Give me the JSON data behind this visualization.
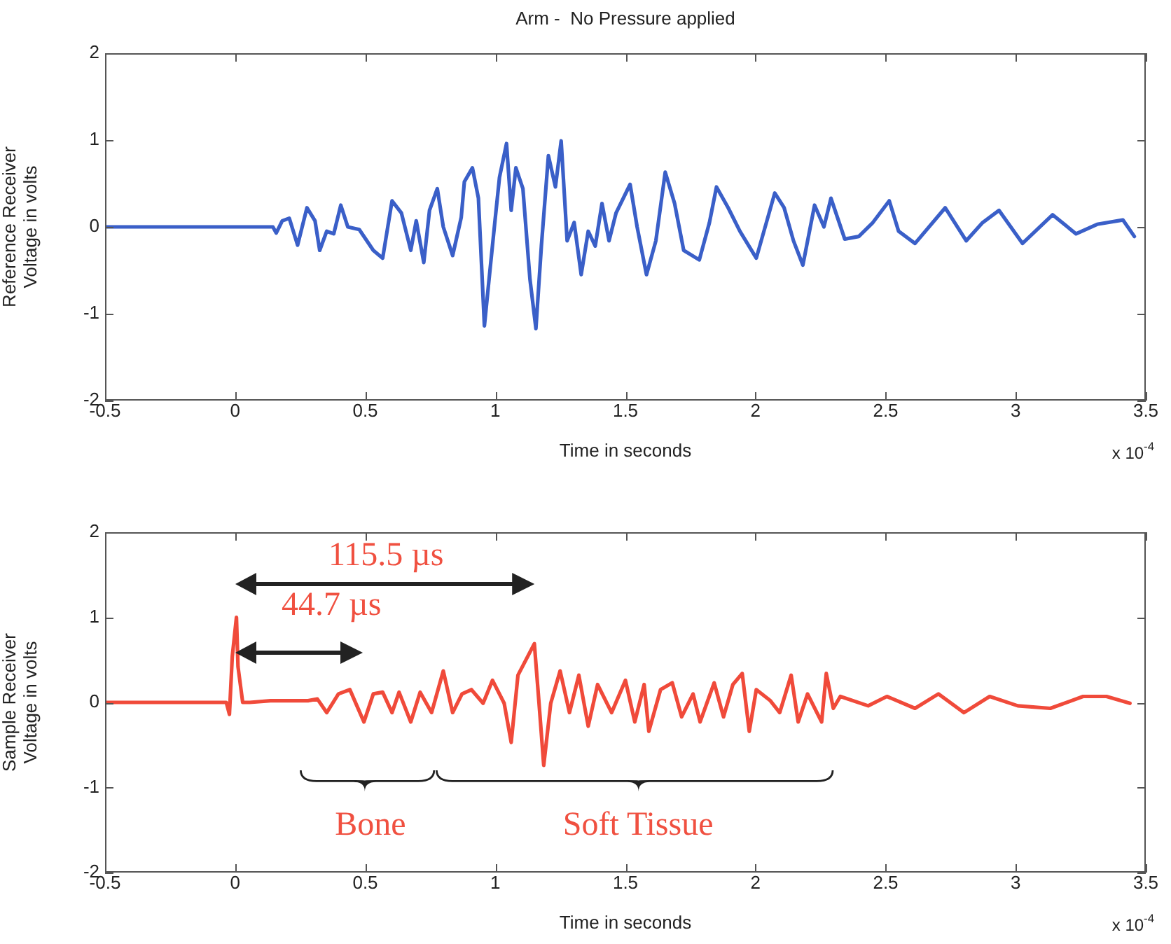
{
  "chart_data": [
    {
      "type": "line",
      "title": "Arm -  No Pressure applied",
      "xlabel": "Time in seconds",
      "ylabel": "Reference Receiver\nVoltage in volts",
      "x": [
        -0.5,
        0.145,
        0.158,
        0.181,
        0.208,
        0.24,
        0.276,
        0.307,
        0.325,
        0.352,
        0.379,
        0.406,
        0.433,
        0.477,
        0.531,
        0.567,
        0.603,
        0.639,
        0.675,
        0.696,
        0.725,
        0.747,
        0.777,
        0.8,
        0.836,
        0.869,
        0.881,
        0.912,
        0.935,
        0.958,
        0.976,
        0.998,
        1.016,
        1.043,
        1.061,
        1.079,
        1.106,
        1.133,
        1.156,
        1.177,
        1.204,
        1.231,
        1.253,
        1.276,
        1.303,
        1.33,
        1.357,
        1.384,
        1.41,
        1.437,
        1.464,
        1.518,
        1.545,
        1.581,
        1.617,
        1.653,
        1.689,
        1.724,
        1.784,
        1.823,
        1.85,
        1.895,
        1.94,
        2.003,
        2.074,
        2.11,
        2.146,
        2.182,
        2.227,
        2.263,
        2.29,
        2.343,
        2.397,
        2.451,
        2.514,
        2.55,
        2.613,
        2.729,
        2.81,
        2.873,
        2.936,
        3.026,
        3.142,
        3.232,
        3.313,
        3.412,
        3.456
      ],
      "series": [
        {
          "color": "#3a5fc8",
          "values": [
            0,
            0,
            -0.07,
            0.07,
            0.1,
            -0.21,
            0.22,
            0.07,
            -0.27,
            -0.05,
            -0.08,
            0.25,
            0,
            -0.03,
            -0.27,
            -0.36,
            0.3,
            0.16,
            -0.27,
            0.07,
            -0.41,
            0.19,
            0.44,
            0,
            -0.33,
            0.11,
            0.52,
            0.68,
            0.33,
            -1.14,
            -0.6,
            0.05,
            0.57,
            0.96,
            0.19,
            0.68,
            0.44,
            -0.6,
            -1.17,
            -0.22,
            0.82,
            0.46,
            0.99,
            -0.16,
            0.05,
            -0.55,
            -0.05,
            -0.22,
            0.27,
            -0.16,
            0.16,
            0.49,
            0,
            -0.55,
            -0.16,
            0.63,
            0.27,
            -0.27,
            -0.38,
            0.05,
            0.46,
            0.22,
            -0.05,
            -0.36,
            0.39,
            0.22,
            -0.16,
            -0.44,
            0.25,
            0,
            0.33,
            -0.14,
            -0.11,
            0.05,
            0.3,
            -0.05,
            -0.19,
            0.22,
            -0.16,
            0.05,
            0.19,
            -0.19,
            0.14,
            -0.08,
            0.03,
            0.08,
            -0.11
          ]
        }
      ],
      "xlim": [
        -0.5,
        3.5
      ],
      "xticks": [
        -0.5,
        0,
        0.5,
        1,
        1.5,
        2,
        2.5,
        3,
        3.5
      ],
      "ylim": [
        -2,
        2
      ],
      "yticks": [
        -2,
        -1,
        0,
        1,
        2
      ],
      "annotations": [
        "x 10$^{-4}$"
      ],
      "legend": false
    },
    {
      "type": "line",
      "xlabel": "Time in seconds",
      "ylabel": "Sample Receiver\nVoltage in volts",
      "x": [
        -0.5,
        -0.034,
        -0.022,
        -0.011,
        0.005,
        0.011,
        0.029,
        0.056,
        0.136,
        0.28,
        0.316,
        0.352,
        0.397,
        0.441,
        0.468,
        0.495,
        0.531,
        0.567,
        0.603,
        0.63,
        0.675,
        0.711,
        0.755,
        0.8,
        0.836,
        0.872,
        0.908,
        0.953,
        0.989,
        1.034,
        1.061,
        1.087,
        1.15,
        1.168,
        1.186,
        1.213,
        1.249,
        1.285,
        1.321,
        1.357,
        1.393,
        1.447,
        1.5,
        1.536,
        1.572,
        1.59,
        1.635,
        1.68,
        1.716,
        1.76,
        1.787,
        1.841,
        1.877,
        1.913,
        1.949,
        1.976,
        2.003,
        2.057,
        2.093,
        2.137,
        2.164,
        2.2,
        2.254,
        2.272,
        2.299,
        2.326,
        2.433,
        2.505,
        2.613,
        2.703,
        2.801,
        2.9,
        3.008,
        3.133,
        3.259,
        3.349,
        3.439
      ],
      "series": [
        {
          "color": "#f04a3a",
          "values": [
            0,
            0,
            -0.14,
            0.54,
            1,
            0.42,
            0,
            0,
            0.02,
            0.02,
            0.04,
            -0.12,
            0.1,
            0.15,
            -0.04,
            -0.23,
            0.1,
            0.12,
            -0.12,
            0.12,
            -0.23,
            0.12,
            -0.12,
            0.37,
            -0.12,
            0.1,
            0.15,
            -0.01,
            0.26,
            -0.01,
            -0.47,
            0.32,
            0.69,
            -0.01,
            -0.74,
            -0.01,
            0.37,
            -0.12,
            0.32,
            -0.28,
            0.21,
            -0.12,
            0.26,
            -0.23,
            0.21,
            -0.34,
            0.15,
            0.23,
            -0.17,
            0.1,
            -0.23,
            0.23,
            -0.17,
            0.21,
            0.34,
            -0.34,
            0.15,
            0.02,
            -0.12,
            0.32,
            -0.23,
            0.1,
            -0.23,
            0.34,
            -0.07,
            0.07,
            -0.04,
            0.07,
            -0.07,
            0.1,
            -0.12,
            0.07,
            -0.04,
            -0.07,
            0.07,
            0.07,
            -0.01
          ]
        }
      ],
      "xlim": [
        -0.5,
        3.5
      ],
      "xticks": [
        -0.5,
        0,
        0.5,
        1,
        1.5,
        2,
        2.5,
        3,
        3.5
      ],
      "ylim": [
        -2,
        2
      ],
      "yticks": [
        -2,
        -1,
        0,
        1,
        2
      ],
      "annotations": [
        "x 10$^{-4}$",
        "115.5 µs",
        "44.7 µs",
        "Bone",
        "Soft Tissue"
      ],
      "legend": false
    }
  ]
}
